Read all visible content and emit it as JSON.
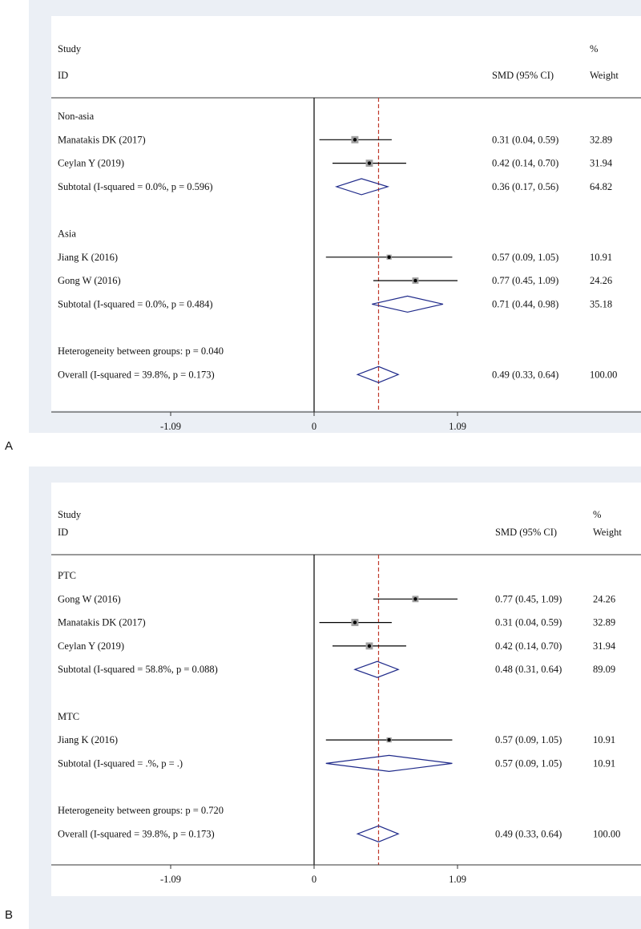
{
  "chart_data": [
    {
      "type": "forest",
      "panel_label": "A",
      "headers": {
        "study": [
          "Study",
          "ID"
        ],
        "effect": "SMD (95% CI)",
        "weight": [
          "%",
          "Weight"
        ]
      },
      "xticks": [
        {
          "value": -1.09,
          "label": "-1.09"
        },
        {
          "value": 0,
          "label": "0"
        },
        {
          "value": 1.09,
          "label": "1.09"
        }
      ],
      "xlim": [
        -1.09,
        1.09
      ],
      "overall_line": 0.49,
      "rows": [
        {
          "kind": "group",
          "label": "Non-asia"
        },
        {
          "kind": "study",
          "label": "Manatakis DK (2017)",
          "est": 0.31,
          "lo": 0.04,
          "hi": 0.59,
          "ci_text": "0.31 (0.04, 0.59)",
          "weight": "32.89"
        },
        {
          "kind": "study",
          "label": "Ceylan Y (2019)",
          "est": 0.42,
          "lo": 0.14,
          "hi": 0.7,
          "ci_text": "0.42 (0.14, 0.70)",
          "weight": "31.94"
        },
        {
          "kind": "subtotal",
          "label": "Subtotal  (I-squared = 0.0%, p = 0.596)",
          "est": 0.36,
          "lo": 0.17,
          "hi": 0.56,
          "ci_text": "0.36 (0.17, 0.56)",
          "weight": "64.82"
        },
        {
          "kind": "blank"
        },
        {
          "kind": "group",
          "label": "Asia"
        },
        {
          "kind": "study",
          "label": "Jiang K (2016)",
          "est": 0.57,
          "lo": 0.09,
          "hi": 1.05,
          "ci_text": "0.57 (0.09, 1.05)",
          "weight": "10.91"
        },
        {
          "kind": "study",
          "label": "Gong W (2016)",
          "est": 0.77,
          "lo": 0.45,
          "hi": 1.09,
          "ci_text": "0.77 (0.45, 1.09)",
          "weight": "24.26"
        },
        {
          "kind": "subtotal",
          "label": "Subtotal  (I-squared = 0.0%, p = 0.484)",
          "est": 0.71,
          "lo": 0.44,
          "hi": 0.98,
          "ci_text": "0.71 (0.44, 0.98)",
          "weight": "35.18"
        },
        {
          "kind": "blank"
        },
        {
          "kind": "text",
          "label": "Heterogeneity between groups: p = 0.040"
        },
        {
          "kind": "subtotal",
          "label": "Overall  (I-squared = 39.8%, p = 0.173)",
          "est": 0.49,
          "lo": 0.33,
          "hi": 0.64,
          "ci_text": "0.49 (0.33, 0.64)",
          "weight": "100.00"
        }
      ]
    },
    {
      "type": "forest",
      "panel_label": "B",
      "headers": {
        "study": [
          "Study",
          "ID"
        ],
        "effect": "SMD (95% CI)",
        "weight": [
          "%",
          "Weight"
        ]
      },
      "xticks": [
        {
          "value": -1.09,
          "label": "-1.09"
        },
        {
          "value": 0,
          "label": "0"
        },
        {
          "value": 1.09,
          "label": "1.09"
        }
      ],
      "xlim": [
        -1.09,
        1.09
      ],
      "overall_line": 0.49,
      "rows": [
        {
          "kind": "group",
          "label": "PTC"
        },
        {
          "kind": "study",
          "label": "Gong W (2016)",
          "est": 0.77,
          "lo": 0.45,
          "hi": 1.09,
          "ci_text": "0.77 (0.45, 1.09)",
          "weight": "24.26"
        },
        {
          "kind": "study",
          "label": "Manatakis DK (2017)",
          "est": 0.31,
          "lo": 0.04,
          "hi": 0.59,
          "ci_text": "0.31 (0.04, 0.59)",
          "weight": "32.89"
        },
        {
          "kind": "study",
          "label": "Ceylan Y (2019)",
          "est": 0.42,
          "lo": 0.14,
          "hi": 0.7,
          "ci_text": "0.42 (0.14, 0.70)",
          "weight": "31.94"
        },
        {
          "kind": "subtotal",
          "label": "Subtotal  (I-squared = 58.8%, p = 0.088)",
          "est": 0.48,
          "lo": 0.31,
          "hi": 0.64,
          "ci_text": "0.48 (0.31, 0.64)",
          "weight": "89.09"
        },
        {
          "kind": "blank"
        },
        {
          "kind": "group",
          "label": "MTC"
        },
        {
          "kind": "study",
          "label": "Jiang K (2016)",
          "est": 0.57,
          "lo": 0.09,
          "hi": 1.05,
          "ci_text": "0.57 (0.09, 1.05)",
          "weight": "10.91"
        },
        {
          "kind": "subtotal",
          "label": "Subtotal  (I-squared = .%, p = .)",
          "est": 0.57,
          "lo": 0.09,
          "hi": 1.05,
          "ci_text": "0.57 (0.09, 1.05)",
          "weight": "10.91"
        },
        {
          "kind": "blank"
        },
        {
          "kind": "text",
          "label": "Heterogeneity between groups: p = 0.720"
        },
        {
          "kind": "subtotal",
          "label": "Overall  (I-squared = 39.8%, p = 0.173)",
          "est": 0.49,
          "lo": 0.33,
          "hi": 0.64,
          "ci_text": "0.49 (0.33, 0.64)",
          "weight": "100.00"
        }
      ]
    }
  ],
  "colors": {
    "diamond": "#1f2a8a",
    "null_line": "#000000",
    "overall_line": "#c0392b",
    "box": "#a0a0a0",
    "ci": "#000000"
  }
}
